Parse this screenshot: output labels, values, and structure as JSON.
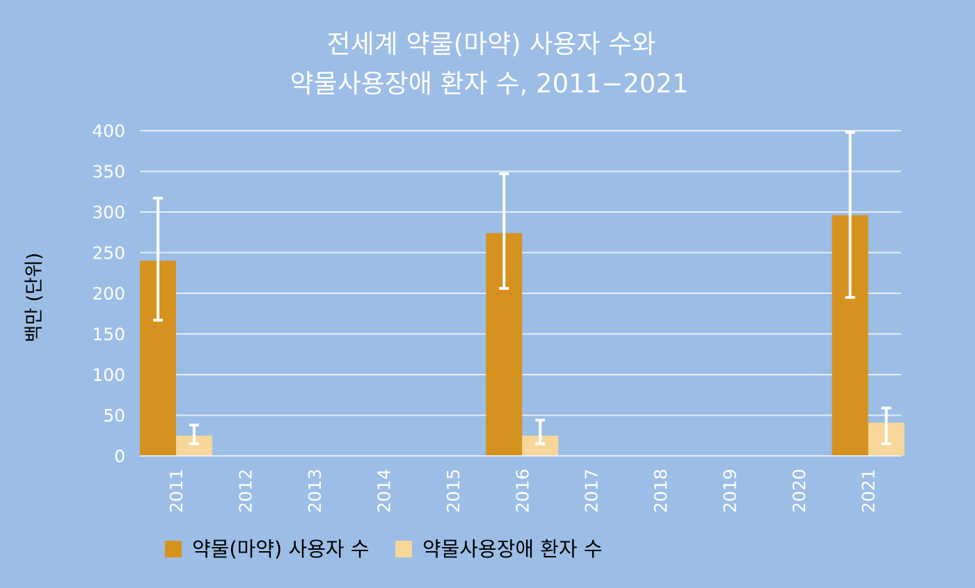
{
  "chart_data": {
    "type": "bar",
    "title_lines": [
      "전세계 약물(마약) 사용자 수와",
      "약물사용장애 환자 수, 2011−2021"
    ],
    "ylabel": "백만 (단위)",
    "xlabel": "",
    "ylim": [
      0,
      400
    ],
    "yticks": [
      0,
      50,
      100,
      150,
      200,
      250,
      300,
      350,
      400
    ],
    "grid": true,
    "legend_position": "bottom-left",
    "categories": [
      "2011",
      "2012",
      "2013",
      "2014",
      "2015",
      "2016",
      "2017",
      "2018",
      "2019",
      "2020",
      "2021"
    ],
    "series": [
      {
        "name": "약물(마약) 사용자 수",
        "color": "#d6921e",
        "values": [
          240,
          null,
          null,
          null,
          null,
          274,
          null,
          null,
          null,
          null,
          296
        ],
        "error_low": [
          167,
          null,
          null,
          null,
          null,
          206,
          null,
          null,
          null,
          null,
          195
        ],
        "error_high": [
          317,
          null,
          null,
          null,
          null,
          347,
          null,
          null,
          null,
          null,
          398
        ]
      },
      {
        "name": "약물사용장애 환자 수",
        "color": "#f7d799",
        "values": [
          25,
          null,
          null,
          null,
          null,
          25,
          null,
          null,
          null,
          null,
          41
        ],
        "error_low": [
          15,
          null,
          null,
          null,
          null,
          15,
          null,
          null,
          null,
          null,
          15
        ],
        "error_high": [
          38,
          null,
          null,
          null,
          null,
          44,
          null,
          null,
          null,
          null,
          59
        ]
      }
    ]
  },
  "colors": {
    "background": "#9cbde5",
    "gridline": "#e6eef9",
    "error_bar": "#ffffff"
  }
}
